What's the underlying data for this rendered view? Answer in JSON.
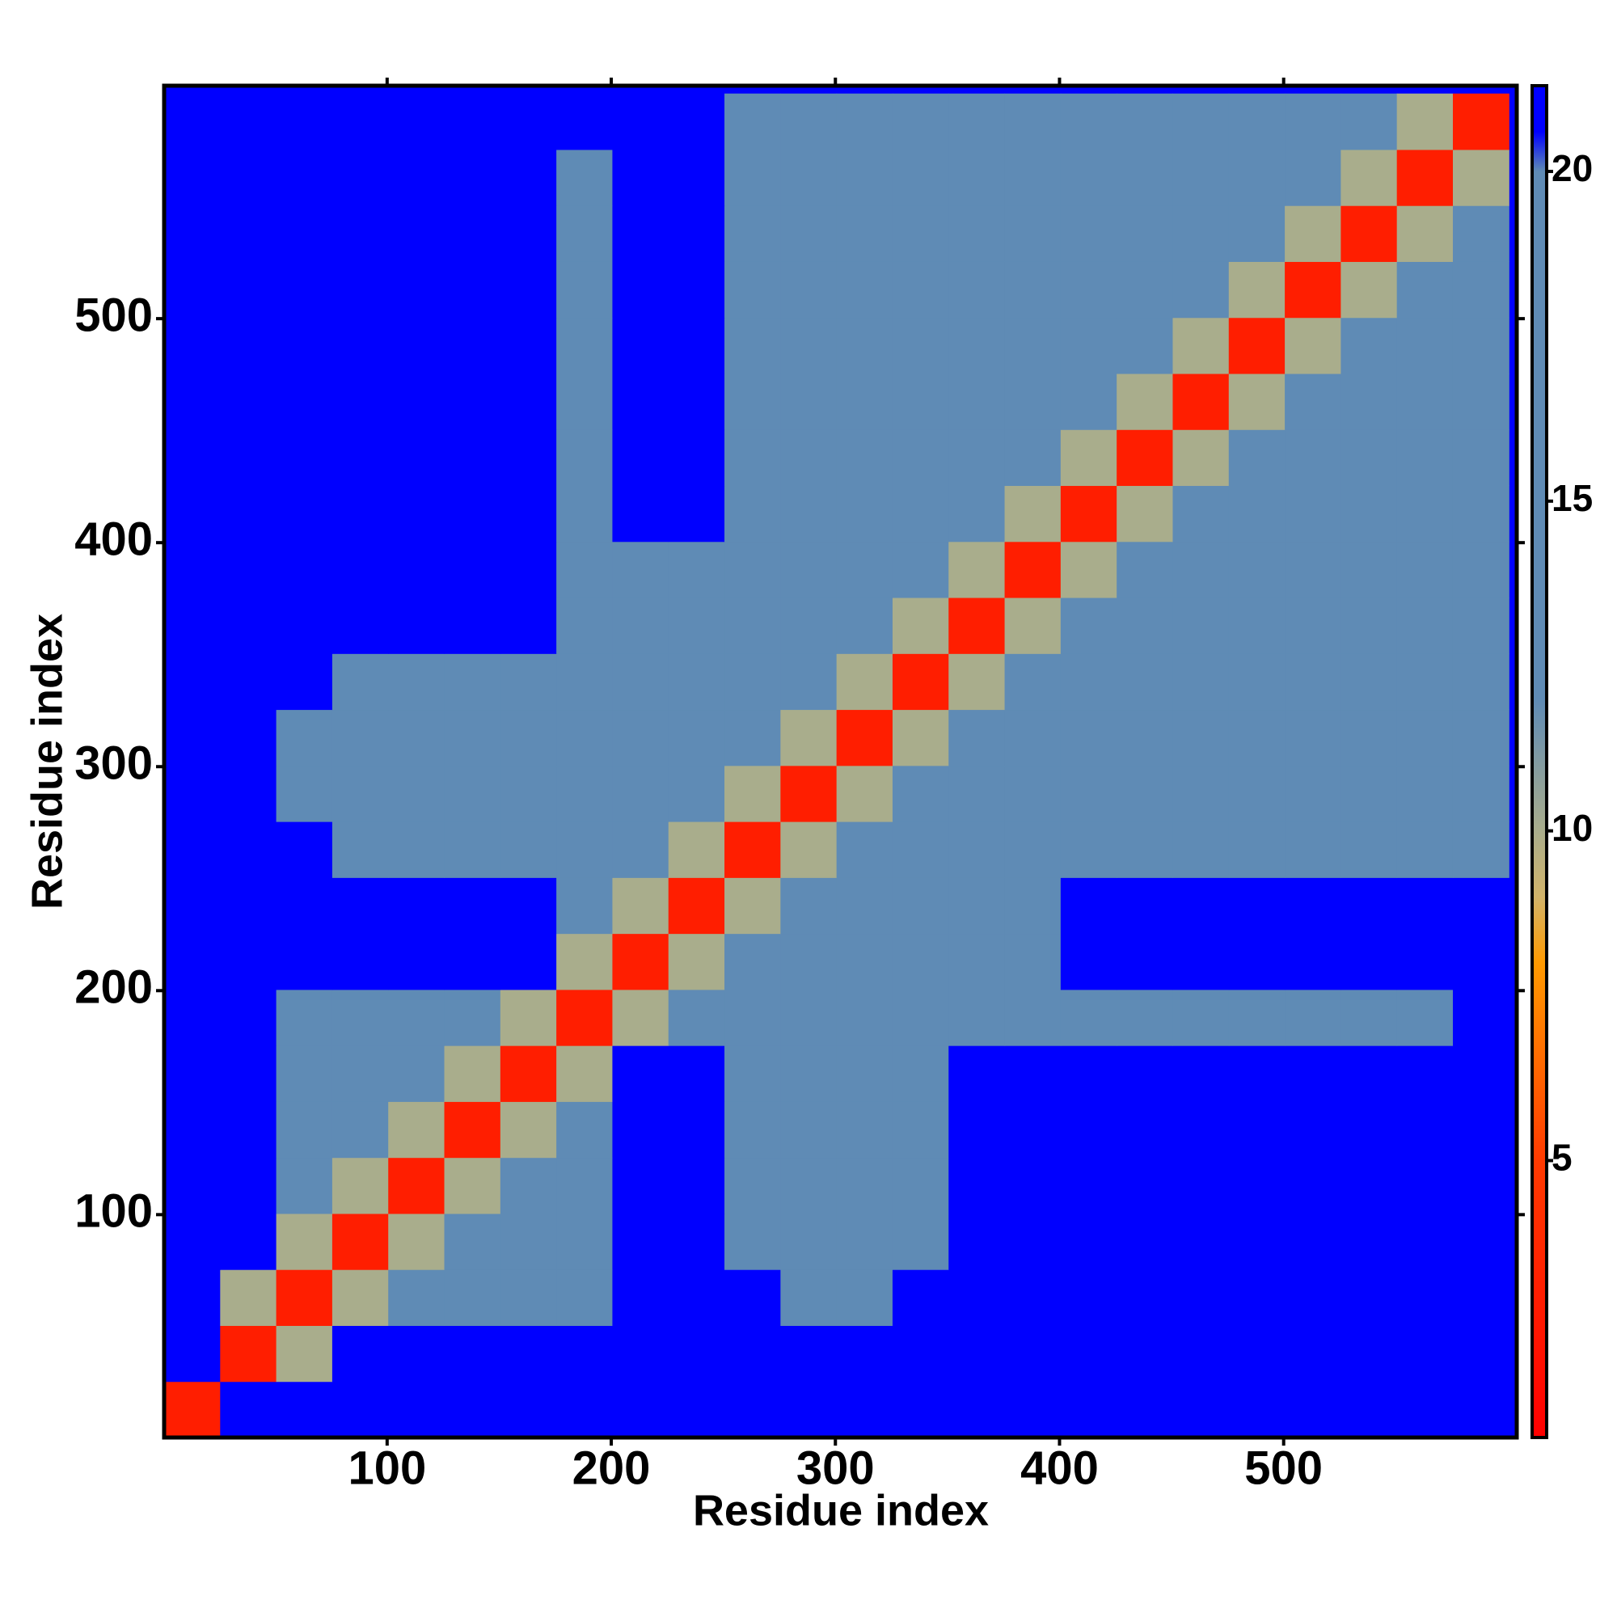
{
  "chart_data": {
    "type": "heatmap",
    "xlabel": "Residue index",
    "ylabel": "Residue index",
    "xlim": [
      0.5,
      604
    ],
    "ylim": [
      0.5,
      604
    ],
    "xticks": [
      100,
      200,
      300,
      400,
      500
    ],
    "yticks": [
      100,
      200,
      300,
      400,
      500
    ],
    "zlim": [
      0.8,
      21.3
    ],
    "zticks": [
      5,
      10,
      15,
      20
    ],
    "background": "#0000ff",
    "colorscale": [
      [
        0.8,
        "#ff0000"
      ],
      [
        5,
        "#ff3a00"
      ],
      [
        8,
        "#ff9a00"
      ],
      [
        9,
        "#d2b46a"
      ],
      [
        10,
        "#a9ad8c"
      ],
      [
        12,
        "#5f8bb5"
      ],
      [
        20,
        "#5f8bb5"
      ],
      [
        20.6,
        "#0000ff"
      ],
      [
        21.3,
        "#0000ff"
      ]
    ],
    "x": [
      13,
      38,
      63,
      88,
      113,
      138,
      163,
      188,
      213,
      238,
      263,
      288,
      313,
      338,
      363,
      388,
      413,
      438,
      463,
      488,
      513,
      538,
      563,
      588
    ],
    "y": [
      13,
      38,
      63,
      88,
      113,
      138,
      163,
      188,
      213,
      238,
      263,
      288,
      313,
      338,
      363,
      388,
      413,
      438,
      463,
      488,
      513,
      538,
      563,
      588
    ],
    "values": [
      [
        3,
        21,
        21,
        21,
        21,
        21,
        21,
        21,
        21,
        21,
        21,
        21,
        21,
        21,
        21,
        21,
        21,
        21,
        21,
        21,
        21,
        21,
        21,
        21
      ],
      [
        21,
        3,
        10,
        21,
        21,
        21,
        21,
        21,
        21,
        21,
        21,
        21,
        21,
        21,
        21,
        21,
        21,
        21,
        21,
        21,
        21,
        21,
        21,
        21
      ],
      [
        21,
        10,
        3,
        10,
        15,
        15,
        15,
        15,
        21,
        21,
        21,
        19,
        19,
        21,
        21,
        21,
        21,
        21,
        21,
        21,
        21,
        21,
        21,
        21
      ],
      [
        21,
        21,
        10,
        3,
        10,
        15,
        15,
        15,
        21,
        21,
        18,
        18,
        18,
        18,
        21,
        21,
        21,
        21,
        21,
        21,
        21,
        21,
        21,
        21
      ],
      [
        21,
        21,
        15,
        10,
        3,
        10,
        15,
        15,
        21,
        21,
        18,
        18,
        18,
        18,
        21,
        21,
        21,
        21,
        21,
        21,
        21,
        21,
        21,
        21
      ],
      [
        21,
        21,
        15,
        15,
        10,
        3,
        10,
        15,
        21,
        21,
        18,
        18,
        18,
        18,
        21,
        21,
        21,
        21,
        21,
        21,
        21,
        21,
        21,
        21
      ],
      [
        21,
        21,
        15,
        15,
        15,
        10,
        3,
        10,
        21,
        21,
        18,
        18,
        18,
        18,
        21,
        21,
        21,
        21,
        21,
        21,
        21,
        21,
        21,
        21
      ],
      [
        21,
        21,
        15,
        15,
        15,
        15,
        10,
        3,
        10,
        12,
        16,
        16,
        16,
        16,
        16,
        16,
        19,
        19,
        19,
        19,
        19,
        19,
        19,
        21
      ],
      [
        21,
        21,
        21,
        21,
        21,
        21,
        21,
        10,
        3,
        10,
        19,
        19,
        19,
        19,
        19,
        19,
        21,
        21,
        21,
        21,
        21,
        21,
        21,
        21
      ],
      [
        21,
        21,
        21,
        21,
        21,
        21,
        21,
        12,
        10,
        3,
        10,
        17,
        17,
        17,
        17,
        17,
        21,
        21,
        21,
        21,
        21,
        21,
        21,
        21
      ],
      [
        21,
        21,
        21,
        18,
        18,
        18,
        18,
        16,
        19,
        10,
        3,
        10,
        15,
        15,
        15,
        15,
        18,
        18,
        18,
        18,
        18,
        18,
        18,
        18
      ],
      [
        21,
        21,
        19,
        18,
        18,
        18,
        18,
        16,
        19,
        17,
        10,
        3,
        10,
        15,
        15,
        15,
        17,
        17,
        17,
        17,
        17,
        17,
        17,
        17
      ],
      [
        21,
        21,
        19,
        18,
        18,
        18,
        18,
        16,
        19,
        17,
        15,
        10,
        3,
        10,
        15,
        15,
        17,
        17,
        17,
        17,
        17,
        17,
        17,
        17
      ],
      [
        21,
        21,
        21,
        18,
        18,
        18,
        18,
        16,
        19,
        17,
        15,
        15,
        10,
        3,
        10,
        15,
        18,
        18,
        18,
        18,
        18,
        18,
        18,
        18
      ],
      [
        21,
        21,
        21,
        21,
        21,
        21,
        21,
        16,
        19,
        17,
        15,
        15,
        15,
        10,
        3,
        10,
        18,
        18,
        18,
        18,
        18,
        18,
        18,
        18
      ],
      [
        21,
        21,
        21,
        21,
        21,
        21,
        21,
        16,
        19,
        17,
        15,
        15,
        15,
        15,
        10,
        3,
        10,
        18,
        18,
        18,
        18,
        18,
        18,
        18
      ],
      [
        21,
        21,
        21,
        21,
        21,
        21,
        21,
        19,
        21,
        21,
        18,
        17,
        17,
        18,
        18,
        10,
        3,
        10,
        15,
        15,
        15,
        15,
        15,
        15
      ],
      [
        21,
        21,
        21,
        21,
        21,
        21,
        21,
        19,
        21,
        21,
        18,
        17,
        17,
        18,
        18,
        18,
        10,
        3,
        10,
        15,
        15,
        15,
        15,
        15
      ],
      [
        21,
        21,
        21,
        21,
        21,
        21,
        21,
        19,
        21,
        21,
        18,
        17,
        17,
        18,
        18,
        18,
        15,
        10,
        3,
        10,
        15,
        15,
        15,
        15
      ],
      [
        21,
        21,
        21,
        21,
        21,
        21,
        21,
        19,
        21,
        21,
        18,
        17,
        17,
        18,
        18,
        18,
        15,
        15,
        10,
        3,
        10,
        15,
        15,
        15
      ],
      [
        21,
        21,
        21,
        21,
        21,
        21,
        21,
        19,
        21,
        21,
        18,
        17,
        17,
        18,
        18,
        18,
        15,
        15,
        15,
        10,
        3,
        10,
        15,
        15
      ],
      [
        21,
        21,
        21,
        21,
        21,
        21,
        21,
        19,
        21,
        21,
        18,
        17,
        17,
        18,
        18,
        18,
        15,
        15,
        15,
        15,
        10,
        3,
        10,
        15
      ],
      [
        21,
        21,
        21,
        21,
        21,
        21,
        21,
        19,
        21,
        21,
        18,
        17,
        17,
        18,
        18,
        18,
        15,
        15,
        15,
        15,
        15,
        10,
        3,
        10
      ],
      [
        21,
        21,
        21,
        21,
        21,
        21,
        21,
        21,
        21,
        21,
        18,
        17,
        17,
        18,
        18,
        18,
        15,
        15,
        15,
        15,
        15,
        15,
        10,
        3
      ]
    ]
  }
}
